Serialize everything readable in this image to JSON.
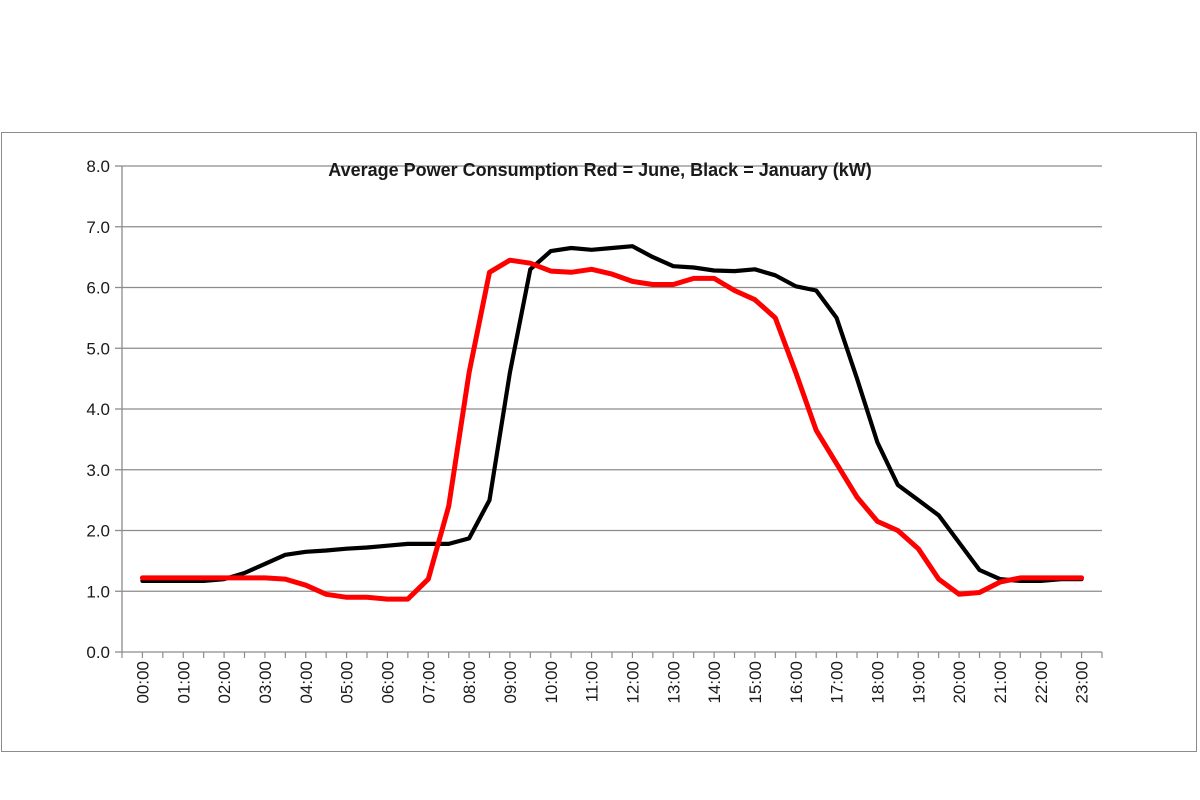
{
  "chart_data": {
    "type": "line",
    "title": "Average Power Consumption  Red = June, Black = January (kW)",
    "xlabel": "",
    "ylabel": "",
    "ylim": [
      0,
      8
    ],
    "yticks": [
      "0.0",
      "1.0",
      "2.0",
      "3.0",
      "4.0",
      "5.0",
      "6.0",
      "7.0",
      "8.0"
    ],
    "categories": [
      "00:00",
      "01:00",
      "02:00",
      "03:00",
      "04:00",
      "05:00",
      "06:00",
      "07:00",
      "08:00",
      "09:00",
      "10:00",
      "11:00",
      "12:00",
      "13:00",
      "14:00",
      "15:00",
      "16:00",
      "17:00",
      "18:00",
      "19:00",
      "20:00",
      "21:00",
      "22:00",
      "23:00"
    ],
    "grid": true,
    "legend": "none",
    "series": [
      {
        "color": "#000000",
        "x": [
          0.5,
          1,
          1.5,
          2,
          2.5,
          3,
          3.5,
          4,
          4.5,
          5,
          5.5,
          6,
          6.5,
          7,
          7.5,
          8,
          8.5,
          9,
          9.5,
          10,
          10.5,
          11,
          11.5,
          12,
          12.5,
          13,
          13.5,
          14,
          14.5,
          15,
          15.5,
          16,
          16.5,
          17,
          17.5,
          18,
          18.5,
          19,
          19.5,
          20,
          20.5,
          21,
          21.5,
          22,
          22.5,
          23,
          23.5
        ],
        "values": [
          1.17,
          1.17,
          1.17,
          1.17,
          1.2,
          1.3,
          1.45,
          1.6,
          1.65,
          1.67,
          1.7,
          1.72,
          1.75,
          1.78,
          1.78,
          1.78,
          1.87,
          2.5,
          4.6,
          6.3,
          6.6,
          6.65,
          6.62,
          6.65,
          6.68,
          6.5,
          6.35,
          6.33,
          6.28,
          6.27,
          6.3,
          6.2,
          6.02,
          5.95,
          5.5,
          4.5,
          3.45,
          2.75,
          2.5,
          2.25,
          1.8,
          1.35,
          1.2,
          1.17,
          1.17,
          1.2,
          1.2
        ]
      },
      {
        "color": "#ff0000",
        "x": [
          0.5,
          1,
          1.5,
          2,
          2.5,
          3,
          3.5,
          4,
          4.5,
          5,
          5.5,
          6,
          6.5,
          7,
          7.5,
          8,
          8.5,
          9,
          9.5,
          10,
          10.5,
          11,
          11.5,
          12,
          12.5,
          13,
          13.5,
          14,
          14.5,
          15,
          15.5,
          16,
          16.5,
          17,
          17.5,
          18,
          18.5,
          19,
          19.5,
          20,
          20.5,
          21,
          21.5,
          22,
          22.5,
          23,
          23.5
        ],
        "values": [
          1.22,
          1.22,
          1.22,
          1.22,
          1.22,
          1.22,
          1.22,
          1.2,
          1.1,
          0.95,
          0.9,
          0.9,
          0.87,
          0.87,
          1.2,
          2.4,
          4.6,
          6.25,
          6.45,
          6.4,
          6.27,
          6.25,
          6.3,
          6.22,
          6.1,
          6.05,
          6.05,
          6.15,
          6.15,
          5.95,
          5.8,
          5.5,
          4.6,
          3.65,
          3.1,
          2.55,
          2.15,
          2.0,
          1.7,
          1.2,
          0.95,
          0.98,
          1.15,
          1.22,
          1.22,
          1.22,
          1.22
        ]
      }
    ]
  }
}
